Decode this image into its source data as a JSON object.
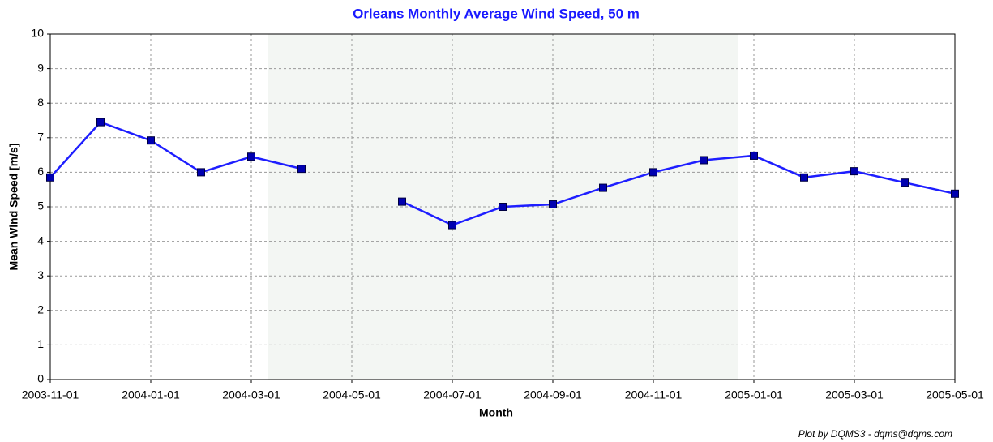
{
  "chart_data": {
    "type": "line",
    "title": "Orleans Monthly Average Wind Speed, 50 m",
    "x_label": "Month",
    "y_label": "Mean Wind Speed [m/s]",
    "footer": "Plot by DQMS3 - dqms@dqms.com",
    "categories": [
      "2003-11-01",
      null,
      "2004-01-01",
      null,
      "2004-03-01",
      null,
      "2004-05-01",
      null,
      "2004-07-01",
      null,
      "2004-09-01",
      null,
      "2004-11-01",
      null,
      "2005-01-01",
      null,
      "2005-03-01",
      null,
      "2005-05-01"
    ],
    "values": [
      5.85,
      7.45,
      6.92,
      6.0,
      6.45,
      6.1,
      null,
      5.15,
      4.47,
      5.0,
      5.07,
      5.55,
      6.0,
      6.35,
      6.48,
      5.85,
      6.03,
      5.7,
      5.38
    ],
    "color": "#1e1eff",
    "marker_color": "#0000b0",
    "ylim": [
      0,
      10
    ],
    "yticks": [
      0,
      1,
      2,
      3,
      4,
      5,
      6,
      7,
      8,
      9,
      10
    ],
    "grid": true
  }
}
